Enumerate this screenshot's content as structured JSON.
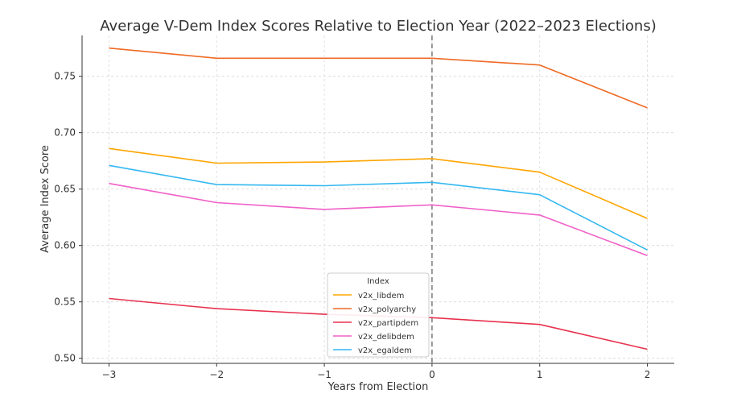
{
  "chart_data": {
    "type": "line",
    "title": "Average V-Dem Index Scores Relative to Election Year (2022–2023 Elections)",
    "xlabel": "Years from Election",
    "ylabel": "Average Index Score",
    "x": [
      -3,
      -2,
      -1,
      0,
      1,
      2
    ],
    "x_ticks": [
      -3,
      -2,
      -1,
      0,
      1,
      2
    ],
    "x_tick_labels": [
      "−3",
      "−2",
      "−1",
      "0",
      "1",
      "2"
    ],
    "xlim": [
      -3.25,
      2.25
    ],
    "y_ticks": [
      0.5,
      0.55,
      0.6,
      0.65,
      0.7,
      0.75
    ],
    "y_tick_labels": [
      "0.50",
      "0.55",
      "0.60",
      "0.65",
      "0.70",
      "0.75"
    ],
    "ylim": [
      0.4955,
      0.7862
    ],
    "grid": true,
    "vertical_reference_line": {
      "x": 0,
      "style": "dashed",
      "color": "#808080"
    },
    "legend": {
      "title": "Index",
      "placement": "bottom-center"
    },
    "series": [
      {
        "name": "v2x_libdem",
        "color": "#FFA500",
        "values": [
          0.686,
          0.673,
          0.674,
          0.677,
          0.665,
          0.624
        ]
      },
      {
        "name": "v2x_polyarchy",
        "color": "#EE6A24",
        "values": [
          0.775,
          0.766,
          0.766,
          0.766,
          0.76,
          0.722
        ]
      },
      {
        "name": "v2x_partipdem",
        "color": "#E8324E",
        "values": [
          0.553,
          0.544,
          0.539,
          0.536,
          0.53,
          0.508
        ]
      },
      {
        "name": "v2x_delibdem",
        "color": "#F060C8",
        "values": [
          0.655,
          0.638,
          0.632,
          0.636,
          0.627,
          0.591
        ]
      },
      {
        "name": "v2x_egaldem",
        "color": "#34B8F0",
        "values": [
          0.671,
          0.654,
          0.653,
          0.656,
          0.645,
          0.596
        ]
      }
    ]
  }
}
